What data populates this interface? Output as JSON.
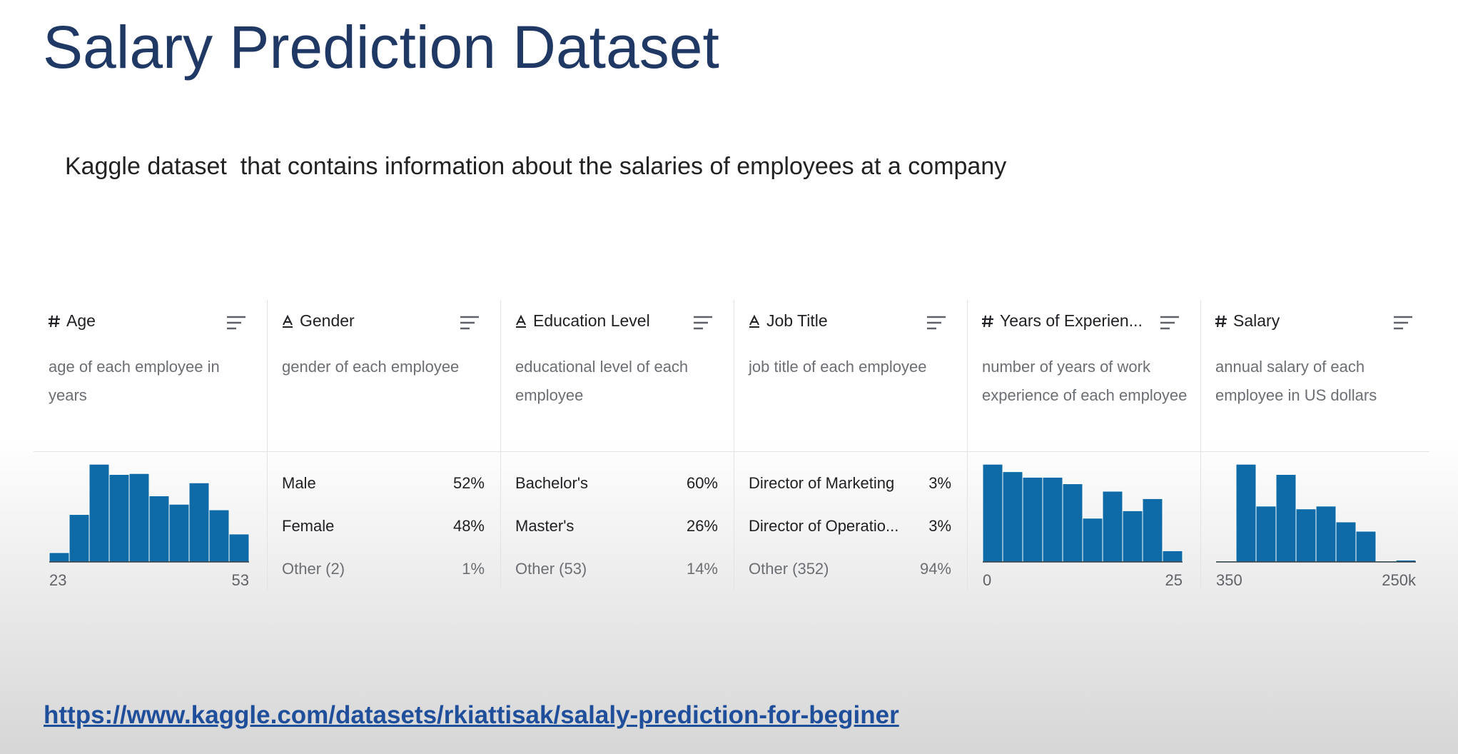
{
  "header": {
    "title": "Salary Prediction Dataset",
    "subtitle": "Kaggle dataset  that contains information about the salaries of employees at a company"
  },
  "columns": [
    {
      "name": "Age",
      "description": "age of each employee in years",
      "chart": {
        "type": "histogram",
        "color": "#0e6ba8",
        "bins": [
          23,
          26,
          29,
          32,
          35,
          38,
          41,
          44,
          47,
          50,
          53
        ],
        "values": [
          10,
          51,
          105,
          94,
          95,
          71,
          62,
          85,
          56,
          30
        ],
        "xlim": [
          23,
          53
        ],
        "xticks": [
          23,
          53
        ]
      }
    },
    {
      "name": "Gender",
      "description": "gender of each employee",
      "rows": [
        {
          "label": "Male",
          "share": "52%"
        },
        {
          "label": "Female",
          "share": "48%"
        },
        {
          "label": "Other (2)",
          "share": "1%"
        }
      ]
    },
    {
      "name": "Education Level",
      "description": "educational level of each employee",
      "rows": [
        {
          "label": "Bachelor's",
          "share": "60%"
        },
        {
          "label": "Master's",
          "share": "26%"
        },
        {
          "label": "Other (53)",
          "share": "14%"
        }
      ]
    },
    {
      "name": "Job Title",
      "description": "job title of each employee",
      "rows": [
        {
          "label": "Director of Marketing",
          "share": "3%"
        },
        {
          "label": "Director of Operatio...",
          "share": "3%"
        },
        {
          "label": "Other (352)",
          "share": "94%"
        }
      ]
    },
    {
      "name": "Years of Experien...",
      "description": "number of years of work experience of each employee",
      "chart": {
        "type": "histogram",
        "color": "#0e6ba8",
        "bins": [
          0,
          2.5,
          5,
          7.5,
          10,
          12.5,
          15,
          17.5,
          20,
          22.5,
          25
        ],
        "values": [
          105,
          97,
          91,
          91,
          84,
          47,
          76,
          55,
          68,
          12
        ],
        "xlim": [
          0,
          25
        ],
        "xticks": [
          0,
          25
        ]
      }
    },
    {
      "name": "Salary",
      "description": "annual salary of each employee in US dollars",
      "chart": {
        "type": "histogram",
        "color": "#0e6ba8",
        "bins": [
          350,
          25315,
          50280,
          75245,
          100210,
          125175,
          150140,
          175105,
          200070,
          225035,
          250000
        ],
        "values": [
          1,
          105,
          60,
          94,
          57,
          60,
          43,
          33,
          1,
          2
        ],
        "xlim": [
          350,
          250000
        ],
        "xticks": [
          350,
          {
            "value": 250000,
            "label": "250k"
          }
        ]
      }
    }
  ],
  "link": "https://www.kaggle.com/datasets/rkiattisak/salaly-prediction-for-beginer"
}
